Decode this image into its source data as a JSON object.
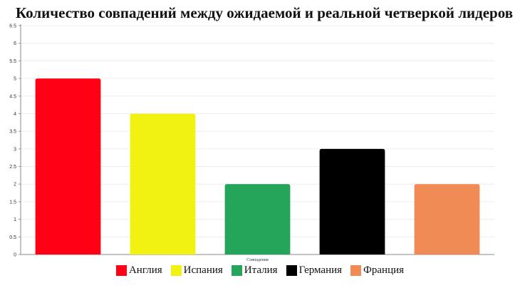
{
  "chart_data": {
    "type": "bar",
    "title": "Количество совпадений между ожидаемой и реальной четверкой лидеров",
    "categories": [
      "Англия",
      "Испания",
      "Италия",
      "Германия",
      "Франция"
    ],
    "values": [
      5,
      4,
      2,
      3,
      2
    ],
    "colors": [
      "#ff0015",
      "#f2f212",
      "#24a55a",
      "#000000",
      "#f08b55"
    ],
    "xlabel": "Совпадения",
    "ylabel": "",
    "ylim": [
      0,
      6.5
    ],
    "yticks": [
      "0",
      "0.5",
      "1",
      "1.5",
      "2",
      "2.5",
      "3",
      "3.5",
      "4",
      "4.5",
      "5",
      "5.5",
      "6",
      "6.5"
    ],
    "grid": true,
    "legend": "bottom"
  }
}
